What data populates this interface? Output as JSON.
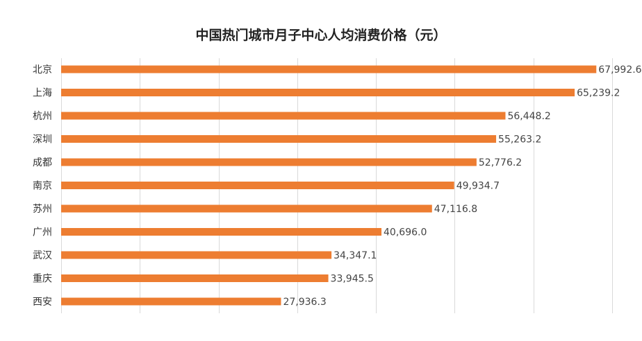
{
  "chart_data": {
    "type": "bar",
    "orientation": "horizontal",
    "title": "中国热门城市月子中心人均消费价格（元）",
    "categories": [
      "北京",
      "上海",
      "杭州",
      "深圳",
      "成都",
      "南京",
      "苏州",
      "广州",
      "武汉",
      "重庆",
      "西安"
    ],
    "values": [
      67992.6,
      65239.2,
      56448.2,
      55263.2,
      52776.2,
      49934.7,
      47116.8,
      40696.0,
      34347.1,
      33945.5,
      27936.3
    ],
    "value_labels": [
      "67,992.6",
      "65,239.2",
      "56,448.2",
      "55,263.2",
      "52,776.2",
      "49,934.7",
      "47,116.8",
      "40,696.0",
      "34,347.1",
      "33,945.5",
      "27,936.3"
    ],
    "xlim": [
      0,
      70000
    ],
    "x_gridlines": [
      0,
      10000,
      20000,
      30000,
      40000,
      50000,
      60000,
      70000
    ],
    "grid": true,
    "legend": "none",
    "bar_color": "#ED7D31",
    "grid_color": "#D9D9D9"
  }
}
